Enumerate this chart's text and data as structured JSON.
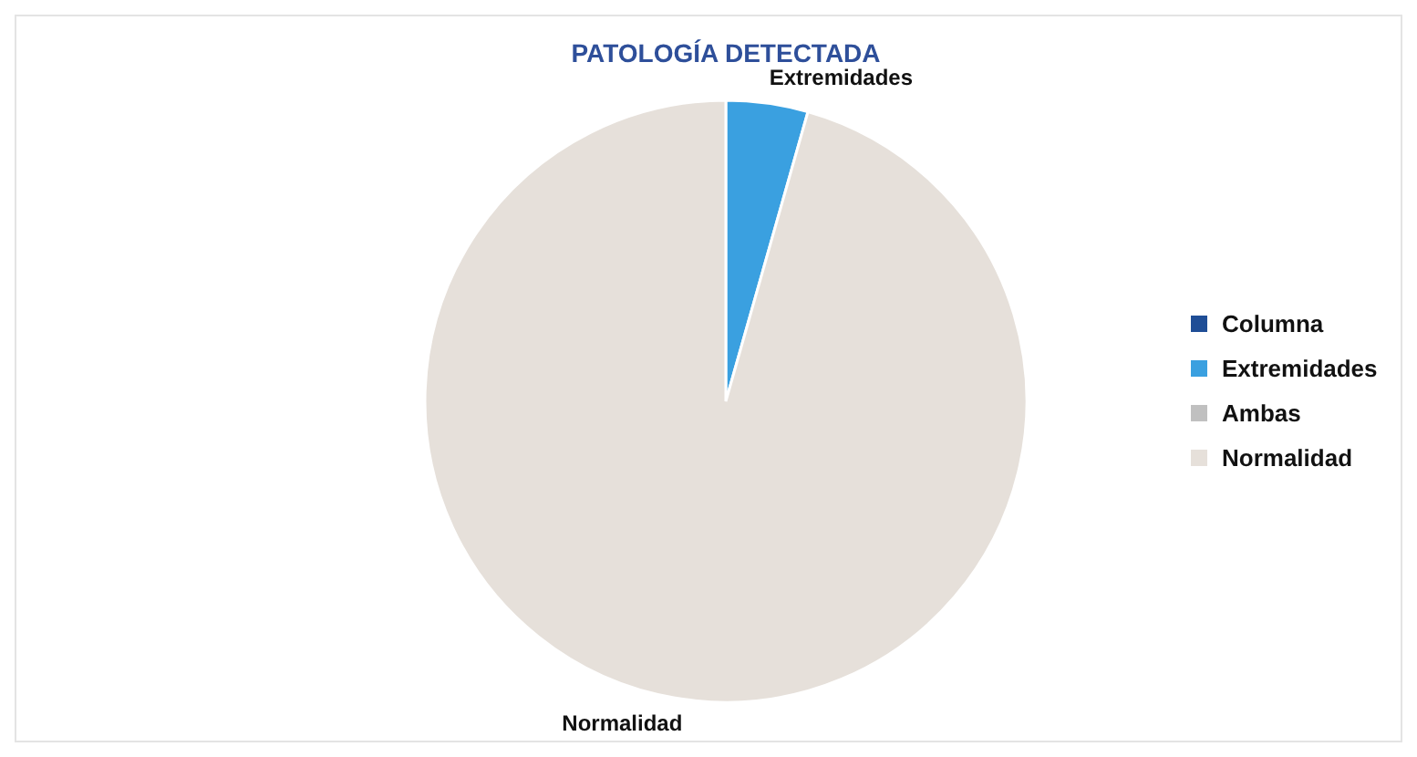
{
  "chart_data": {
    "type": "pie",
    "title": "PATOLOGÍA DETECTADA",
    "categories": [
      "Columna",
      "Extremidades",
      "Ambas",
      "Normalidad"
    ],
    "values": [
      0,
      4.4,
      0,
      95.6
    ],
    "colors": [
      "#1f4e96",
      "#3aa0e0",
      "#c0c0c0",
      "#e6e0da"
    ],
    "legend": "right"
  }
}
